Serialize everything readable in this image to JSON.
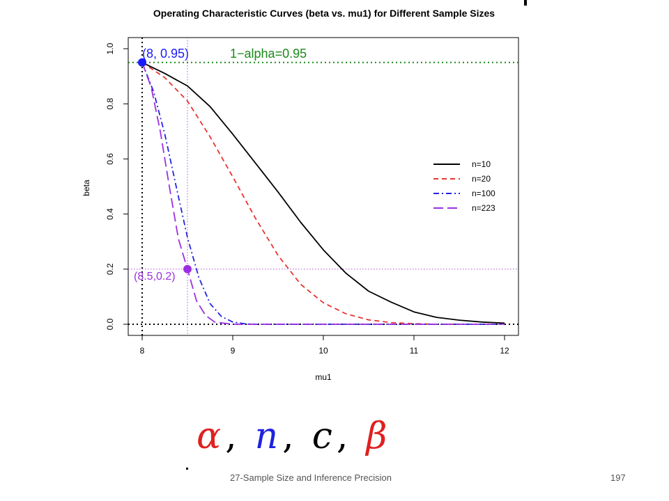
{
  "chart_data": {
    "type": "line",
    "title": "Operating Characteristic Curves (beta vs. mu1) for Different Sample Sizes",
    "xlabel": "mu1",
    "ylabel": "beta",
    "xlim": [
      8,
      12
    ],
    "ylim": [
      0,
      1
    ],
    "xticks": [
      "8",
      "9",
      "10",
      "11",
      "12"
    ],
    "yticks": [
      "0.0",
      "0.2",
      "0.4",
      "0.6",
      "0.8",
      "1.0"
    ],
    "grid": false,
    "legend_position": "right",
    "series": [
      {
        "name": "n=10",
        "color": "#000000",
        "dash": "solid",
        "x": [
          8.0,
          8.25,
          8.5,
          8.75,
          9.0,
          9.25,
          9.5,
          9.75,
          10.0,
          10.25,
          10.5,
          10.75,
          11.0,
          11.25,
          11.5,
          11.75,
          12.0
        ],
        "y": [
          0.95,
          0.91,
          0.865,
          0.79,
          0.69,
          0.585,
          0.48,
          0.37,
          0.27,
          0.185,
          0.12,
          0.08,
          0.045,
          0.025,
          0.015,
          0.008,
          0.004
        ]
      },
      {
        "name": "n=20",
        "color": "#e8332f",
        "dash": "dash",
        "x": [
          8.0,
          8.25,
          8.5,
          8.75,
          9.0,
          9.25,
          9.5,
          9.75,
          10.0,
          10.25,
          10.5,
          10.75,
          11.0,
          11.25,
          11.5
        ],
        "y": [
          0.95,
          0.895,
          0.81,
          0.68,
          0.535,
          0.385,
          0.25,
          0.145,
          0.078,
          0.038,
          0.016,
          0.006,
          0.002,
          0.0,
          0.0
        ]
      },
      {
        "name": "n=100",
        "color": "#2323e0",
        "dash": "dashdot",
        "x": [
          8.0,
          8.125,
          8.25,
          8.375,
          8.5,
          8.625,
          8.75,
          8.875,
          9.0,
          9.125,
          9.25,
          9.5,
          12.0
        ],
        "y": [
          0.95,
          0.845,
          0.69,
          0.5,
          0.315,
          0.17,
          0.075,
          0.028,
          0.008,
          0.002,
          0.0,
          0.0,
          0.0
        ]
      },
      {
        "name": "n=223",
        "color": "#9b30e0",
        "dash": "longdash",
        "x": [
          8.0,
          8.1,
          8.2,
          8.3,
          8.4,
          8.5,
          8.6,
          8.7,
          8.8,
          9.0,
          12.0
        ],
        "y": [
          0.95,
          0.86,
          0.7,
          0.5,
          0.31,
          0.2,
          0.085,
          0.032,
          0.008,
          0.0,
          0.0
        ]
      }
    ],
    "reference_lines": [
      {
        "orientation": "h",
        "value": 0.95,
        "color": "#1a8a1a",
        "dash": "dotted",
        "label": "1−alpha=0.95"
      },
      {
        "orientation": "h",
        "value": 0.0,
        "color": "#000000",
        "dash": "dotted"
      },
      {
        "orientation": "v",
        "value": 8.0,
        "color": "#000000",
        "dash": "dotted"
      },
      {
        "orientation": "h",
        "value": 0.2,
        "color": "#b04fd8",
        "dash": "thin-dotted"
      },
      {
        "orientation": "v",
        "value": 8.5,
        "color": "#b04fd8",
        "dash": "thin-dotted"
      }
    ],
    "points": [
      {
        "x": 8.0,
        "y": 0.95,
        "color": "#1a1aff",
        "label": "(8, 0.95)"
      },
      {
        "x": 8.5,
        "y": 0.2,
        "color": "#9b30e0",
        "label": "(8.5,0.2)"
      }
    ]
  },
  "symbols": [
    {
      "text": "α",
      "color": "#e02020"
    },
    {
      "text": "n",
      "color": "#2020e0"
    },
    {
      "text": "c",
      "color": "#000000"
    },
    {
      "text": "β",
      "color": "#e02020"
    }
  ],
  "symbol_separator": ",",
  "footer": {
    "text": "27-Sample Size and Inference Precision",
    "page": "197"
  }
}
